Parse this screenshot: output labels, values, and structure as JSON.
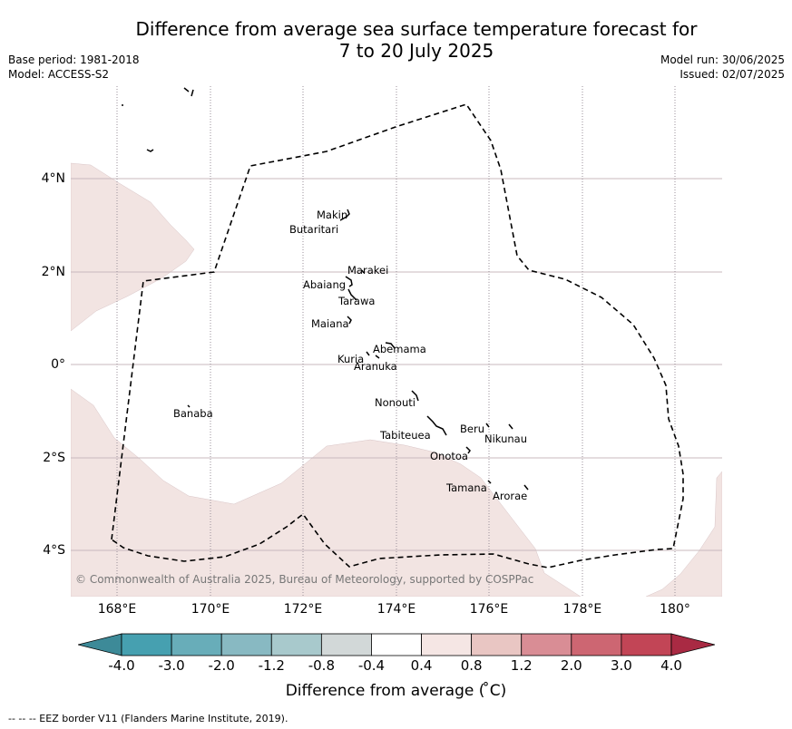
{
  "title_line1": "Difference from average sea surface temperature forecast for",
  "title_line2": "7 to 20 July 2025",
  "meta": {
    "base_period": "Base period: 1981-2018",
    "model": "Model: ACCESS-S2",
    "model_run": "Model run: 30/06/2025",
    "issued": "Issued: 02/07/2025"
  },
  "lat_labels": [
    "4°N",
    "2°N",
    "0°",
    "2°S",
    "4°S"
  ],
  "lon_labels": [
    "168°E",
    "170°E",
    "172°E",
    "174°E",
    "176°E",
    "178°E",
    "180°"
  ],
  "islands": [
    "Makin",
    "Butaritari",
    "Marakei",
    "Abaiang",
    "Tarawa",
    "Maiana",
    "Abemama",
    "Kuria",
    "Aranuka",
    "Nonouti",
    "Tabiteuea",
    "Beru",
    "Nikunau",
    "Onotoa",
    "Banaba",
    "Tamana",
    "Arorae"
  ],
  "copyright": "© Commonwealth of Australia 2025, Bureau of Meteorology, supported by COSPPac",
  "colorbar": {
    "ticks": [
      "-4.0",
      "-3.0",
      "-2.0",
      "-1.2",
      "-0.8",
      "-0.4",
      "0.4",
      "0.8",
      "1.2",
      "2.0",
      "3.0",
      "4.0"
    ],
    "colors": [
      "#46a0b0",
      "#68adb9",
      "#88b9c2",
      "#a8c9cc",
      "#d2d8d8",
      "#ffffff",
      "#f5e6e4",
      "#e9c6c3",
      "#d98d95",
      "#cd6672",
      "#c24556"
    ],
    "under_color": "#3d8a98",
    "over_color": "#a92a43",
    "label": "Difference from average ( ̊C)"
  },
  "map": {
    "anomaly_fill_color": "#f2e4e2",
    "eez_color": "#000000"
  },
  "footer": "--  --  -- EEZ border V11 (Flanders Marine Institute, 2019)."
}
